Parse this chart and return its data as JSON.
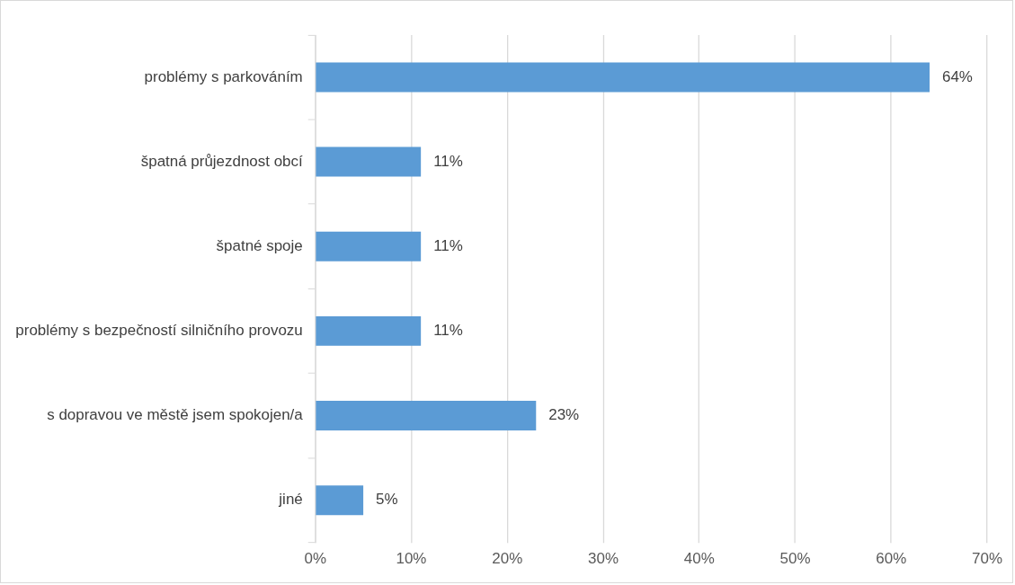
{
  "chart_data": {
    "type": "bar",
    "orientation": "horizontal",
    "categories": [
      "problémy s parkováním",
      "špatná průjezdnost obcí",
      "špatné spoje",
      "problémy s bezpečností silničního provozu",
      "s dopravou ve městě jsem spokojen/a",
      "jiné"
    ],
    "values": [
      64,
      11,
      11,
      11,
      23,
      5
    ],
    "value_labels": [
      "64%",
      "11%",
      "11%",
      "11%",
      "23%",
      "5%"
    ],
    "color": "#5b9bd5",
    "xlim": [
      0,
      70
    ],
    "xticks": [
      {
        "value": 0,
        "label": "0%"
      },
      {
        "value": 10,
        "label": "10%"
      },
      {
        "value": 20,
        "label": "20%"
      },
      {
        "value": 30,
        "label": "30%"
      },
      {
        "value": 40,
        "label": "40%"
      },
      {
        "value": 50,
        "label": "50%"
      },
      {
        "value": 60,
        "label": "60%"
      },
      {
        "value": 70,
        "label": "70%"
      }
    ],
    "grid": "x",
    "legend": false
  }
}
